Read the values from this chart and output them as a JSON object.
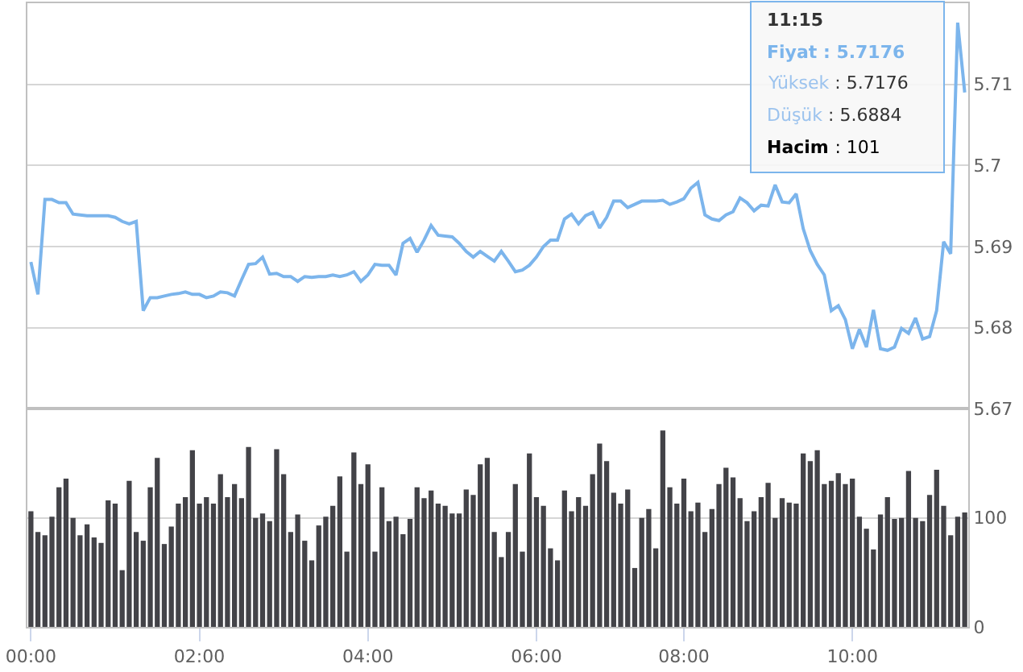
{
  "chart_data": [
    {
      "type": "line",
      "color": "#7cb5ec",
      "categories": [
        null,
        null,
        null,
        null,
        null,
        null,
        null,
        null,
        null,
        null,
        null,
        null,
        null,
        null,
        null,
        null,
        null,
        null,
        null,
        null,
        null,
        null,
        null,
        null,
        null,
        null,
        null,
        null,
        null,
        null,
        null,
        null,
        null,
        null,
        null,
        null,
        null,
        null,
        null,
        null,
        null,
        null,
        null,
        null,
        null,
        null,
        null,
        null,
        null,
        null,
        null,
        null,
        null,
        null,
        null,
        null,
        null,
        null,
        null,
        null,
        null,
        null,
        null,
        null,
        null,
        null,
        null,
        null,
        null,
        null,
        null,
        null,
        null,
        null,
        null,
        null,
        null,
        null,
        null,
        null,
        null,
        null,
        null,
        null,
        null,
        null,
        null,
        null,
        null,
        null,
        null,
        null,
        null,
        null,
        null,
        null,
        null,
        null,
        null,
        null,
        null,
        null,
        null,
        null,
        null,
        null,
        null,
        null,
        null,
        null,
        null,
        null,
        null,
        null,
        null,
        null,
        null,
        null,
        null,
        null,
        null,
        null,
        null,
        null,
        null,
        null,
        null,
        null,
        null,
        null,
        null,
        null,
        null,
        null
      ],
      "values": [
        5.6881,
        5.6841,
        5.6958,
        5.6958,
        5.6954,
        5.6954,
        5.694,
        5.6939,
        5.6938,
        5.6938,
        5.6938,
        5.6938,
        5.6936,
        5.6931,
        5.6928,
        5.6931,
        5.6821,
        5.6837,
        5.6837,
        5.6839,
        5.6841,
        5.6842,
        5.6844,
        5.6841,
        5.6841,
        5.6837,
        5.6839,
        5.6844,
        5.6843,
        5.6839,
        5.6859,
        5.6878,
        5.6879,
        5.6887,
        5.6866,
        5.6867,
        5.6863,
        5.6863,
        5.6857,
        5.6863,
        5.6862,
        5.6863,
        5.6863,
        5.6865,
        5.6863,
        5.6865,
        5.6869,
        5.6857,
        5.6865,
        5.6878,
        5.6877,
        5.6877,
        5.6865,
        5.6904,
        5.691,
        5.6893,
        5.6908,
        5.6926,
        5.6914,
        5.6913,
        5.6912,
        5.6904,
        5.6894,
        5.6887,
        5.6894,
        5.6888,
        5.6882,
        5.6894,
        5.6882,
        5.6869,
        5.6871,
        5.6877,
        5.6887,
        5.69,
        5.6908,
        5.6908,
        5.6934,
        5.694,
        5.6928,
        5.6938,
        5.6942,
        5.6923,
        5.6936,
        5.6956,
        5.6956,
        5.6948,
        5.6952,
        5.6956,
        5.6956,
        5.6956,
        5.6957,
        5.6952,
        5.6955,
        5.6959,
        5.6972,
        5.6979,
        5.6939,
        5.6934,
        5.6932,
        5.6939,
        5.6943,
        5.696,
        5.6954,
        5.6944,
        5.6951,
        5.695,
        5.6976,
        5.6955,
        5.6954,
        5.6965,
        5.6922,
        5.6895,
        5.6878,
        5.6865,
        5.6821,
        5.6827,
        5.681,
        5.6774,
        5.6798,
        5.6776,
        5.6822,
        5.6774,
        5.6772,
        5.6776,
        5.6799,
        5.6793,
        5.6812,
        5.6786,
        5.6789,
        5.6821,
        5.6906,
        5.6891,
        5.7176,
        5.709
      ],
      "ylim": [
        5.67,
        5.72
      ],
      "yticks": [
        5.67,
        5.68,
        5.69,
        5.7,
        5.71
      ],
      "grid": "y",
      "annotations": [
        "11:15",
        "Fiyat : 5.7176",
        "Yüksek : 5.7176",
        "Düşük : 5.6884",
        "Hacim : 101"
      ]
    },
    {
      "type": "bar",
      "color": "#434348",
      "categories": [
        "00:00",
        null,
        null,
        null,
        null,
        null,
        null,
        null,
        null,
        null,
        null,
        null,
        null,
        null,
        null,
        null,
        null,
        null,
        null,
        null,
        null,
        null,
        null,
        null,
        "02:00",
        null,
        null,
        null,
        null,
        null,
        null,
        null,
        null,
        null,
        null,
        null,
        null,
        null,
        null,
        null,
        null,
        null,
        null,
        null,
        null,
        null,
        null,
        null,
        "04:00",
        null,
        null,
        null,
        null,
        null,
        null,
        null,
        null,
        null,
        null,
        null,
        null,
        null,
        null,
        null,
        null,
        null,
        null,
        null,
        null,
        null,
        null,
        null,
        "06:00",
        null,
        null,
        null,
        null,
        null,
        null,
        null,
        null,
        null,
        null,
        null,
        null,
        null,
        null,
        null,
        null,
        null,
        null,
        null,
        null,
        "08:00",
        null,
        null,
        null,
        null,
        null,
        null,
        null,
        null,
        null,
        null,
        null,
        null,
        null,
        null,
        null,
        null,
        null,
        null,
        null,
        null,
        null,
        null,
        null,
        "10:00",
        null,
        null,
        null,
        null,
        null,
        null,
        null,
        null,
        null,
        null,
        null,
        null,
        null,
        null,
        null,
        null
      ],
      "values": [
        106,
        87,
        84,
        101,
        128,
        136,
        100,
        84,
        94,
        82,
        77,
        116,
        113,
        52,
        134,
        87,
        79,
        128,
        155,
        76,
        92,
        113,
        119,
        162,
        113,
        119,
        113,
        140,
        119,
        131,
        118,
        165,
        100,
        104,
        97,
        163,
        140,
        87,
        103,
        79,
        61,
        93,
        101,
        111,
        138,
        69,
        160,
        131,
        149,
        69,
        128,
        97,
        101,
        85,
        99,
        128,
        118,
        125,
        113,
        111,
        104,
        104,
        126,
        121,
        149,
        155,
        87,
        64,
        87,
        131,
        69,
        159,
        119,
        111,
        72,
        61,
        125,
        106,
        119,
        111,
        140,
        168,
        152,
        123,
        113,
        126,
        54,
        100,
        108,
        72,
        180,
        128,
        113,
        136,
        106,
        114,
        87,
        108,
        131,
        146,
        137,
        118,
        97,
        106,
        119,
        132,
        100,
        118,
        114,
        113,
        159,
        152,
        162,
        131,
        134,
        141,
        131,
        136,
        101,
        90,
        71,
        103,
        119,
        99,
        100,
        143,
        100,
        97,
        121,
        144,
        111,
        84,
        101,
        105
      ],
      "ylim": [
        0,
        200
      ],
      "yticks": [
        0,
        100
      ],
      "grid": "y"
    }
  ]
}
